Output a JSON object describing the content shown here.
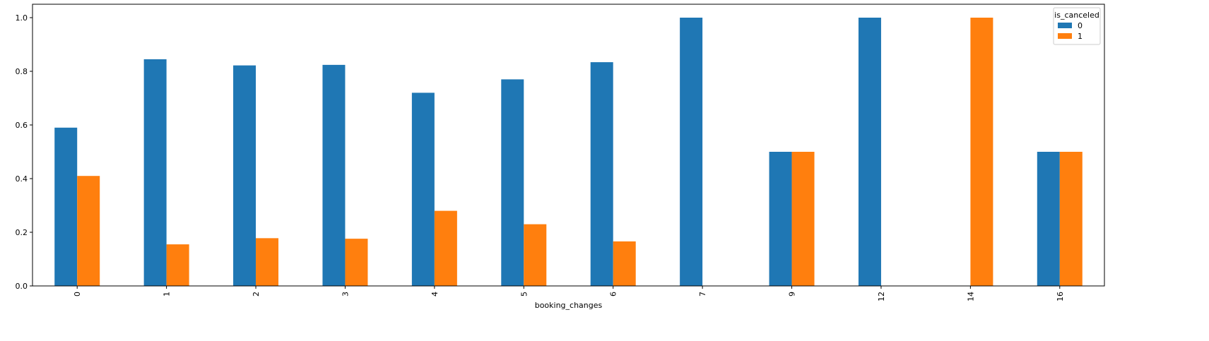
{
  "chart_data": {
    "type": "bar",
    "xlabel": "booking_changes",
    "ylabel": "",
    "categories": [
      "0",
      "1",
      "2",
      "3",
      "4",
      "5",
      "6",
      "7",
      "9",
      "12",
      "14",
      "16"
    ],
    "series": [
      {
        "name": "0",
        "color": "#1f77b4",
        "values": [
          0.59,
          0.845,
          0.822,
          0.824,
          0.72,
          0.77,
          0.834,
          1.0,
          0.5,
          1.0,
          0.0,
          0.5
        ]
      },
      {
        "name": "1",
        "color": "#ff7f0e",
        "values": [
          0.41,
          0.155,
          0.178,
          0.176,
          0.28,
          0.23,
          0.166,
          0.0,
          0.5,
          0.0,
          1.0,
          0.5
        ]
      }
    ],
    "ylim": [
      0,
      1.05
    ],
    "yticks": [
      0.0,
      0.2,
      0.4,
      0.6,
      0.8,
      1.0
    ],
    "ytick_labels": [
      "0.0",
      "0.2",
      "0.4",
      "0.6",
      "0.8",
      "1.0"
    ],
    "grid": false,
    "legend": {
      "title": "is_canceled",
      "placement": "top-right"
    }
  }
}
